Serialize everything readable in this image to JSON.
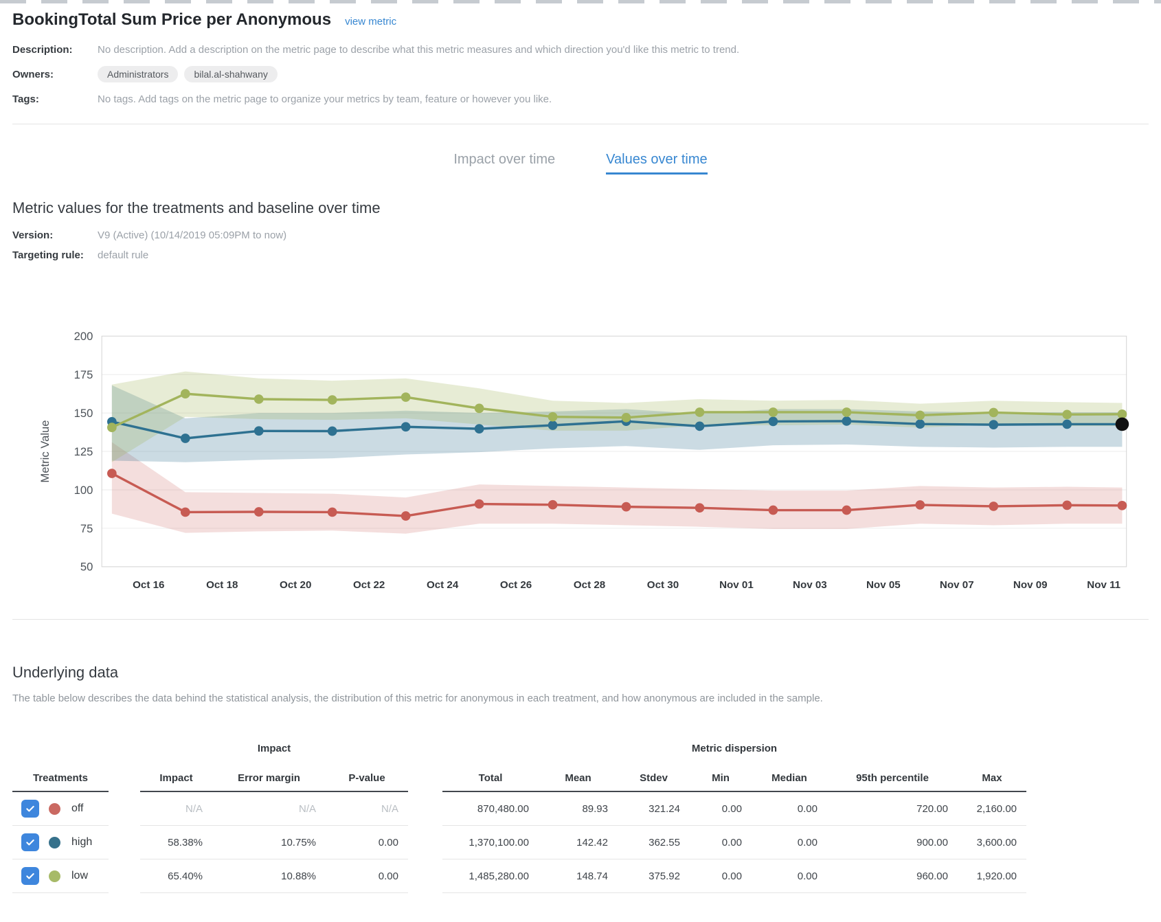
{
  "header": {
    "title": "BookingTotal Sum Price per Anonymous",
    "view_metric_label": "view metric",
    "description_label": "Description:",
    "description_text": "No description. Add a description on the metric page to describe what this metric measures and which direction you'd like this metric to trend.",
    "owners_label": "Owners:",
    "owners": [
      "Administrators",
      "bilal.al-shahwany"
    ],
    "tags_label": "Tags:",
    "tags_text": "No tags. Add tags on the metric page to organize your metrics by team, feature or however you like."
  },
  "tabs": [
    {
      "label": "Impact over time",
      "active": false
    },
    {
      "label": "Values over time",
      "active": true
    }
  ],
  "values_section": {
    "heading": "Metric values for the treatments and baseline over time",
    "version_label": "Version:",
    "version_value": "V9 (Active) (10/14/2019 05:09PM to now)",
    "targeting_label": "Targeting rule:",
    "targeting_value": "default rule"
  },
  "chart_data": {
    "type": "line",
    "title": "",
    "ylabel": "Metric Value",
    "ylim": [
      50,
      200
    ],
    "yticks": [
      50,
      75,
      100,
      125,
      150,
      175,
      200
    ],
    "x_unit": "days",
    "x": [
      0,
      2,
      4,
      6,
      8,
      10,
      12,
      14,
      16,
      18,
      20,
      22,
      24,
      26,
      27.5
    ],
    "xticks": {
      "days": [
        1,
        3,
        5,
        7,
        9,
        11,
        13,
        15,
        17,
        19,
        21,
        23,
        25,
        27
      ],
      "labels": [
        "Oct 16",
        "Oct 18",
        "Oct 20",
        "Oct 22",
        "Oct 24",
        "Oct 26",
        "Oct 28",
        "Oct 30",
        "Nov 01",
        "Nov 03",
        "Nov 05",
        "Nov 07",
        "Nov 09",
        "Nov 11"
      ]
    },
    "grid": true,
    "legend_position": "none",
    "series": [
      {
        "name": "off",
        "color": "#c75b53",
        "fill": "rgba(199,91,83,0.20)",
        "values": [
          110.7,
          85.5,
          85.7,
          85.5,
          83.0,
          90.8,
          90.3,
          89.0,
          88.3,
          86.8,
          86.8,
          90.2,
          89.3,
          90.0,
          89.8
        ],
        "upper": [
          131,
          98.5,
          98,
          97.5,
          95,
          103.5,
          102.5,
          101.5,
          100.5,
          99.5,
          99.5,
          102.5,
          101.5,
          102,
          101.5
        ],
        "lower": [
          84.5,
          72,
          73,
          73.5,
          71.5,
          78,
          78,
          77,
          76,
          74.5,
          74.5,
          78,
          77,
          78,
          78
        ]
      },
      {
        "name": "high",
        "color": "#2e7191",
        "fill": "rgba(46,113,145,0.25)",
        "values": [
          144.3,
          133.5,
          138.3,
          138.2,
          141.0,
          139.7,
          142.0,
          144.6,
          141.4,
          144.5,
          144.7,
          142.8,
          142.4,
          142.7,
          142.7
        ],
        "upper": [
          168,
          146.5,
          150,
          150,
          151.5,
          150,
          151,
          152.5,
          149.5,
          152.5,
          152.5,
          151,
          150.5,
          150.5,
          150.5
        ],
        "lower": [
          119,
          118,
          119.5,
          120.5,
          123,
          124.5,
          127,
          128.5,
          126,
          129,
          129.5,
          128,
          127.5,
          128,
          128
        ]
      },
      {
        "name": "low",
        "color": "#a2b45c",
        "fill": "rgba(162,180,92,0.26)",
        "values": [
          140.6,
          162.5,
          159.0,
          158.5,
          160.3,
          153.0,
          147.5,
          147.0,
          150.5,
          150.5,
          150.5,
          148.5,
          150.3,
          149.0,
          149.2
        ],
        "upper": [
          168.5,
          177,
          172.5,
          171,
          172.5,
          166,
          158,
          156.5,
          159,
          158,
          158.5,
          156,
          158,
          157,
          156.5
        ],
        "lower": [
          118,
          147.5,
          146,
          145.5,
          146.5,
          142.5,
          138.5,
          138.5,
          142,
          142,
          142.5,
          140.5,
          142.5,
          141.5,
          141.5
        ]
      }
    ],
    "last_marker": {
      "series": "high",
      "color": "#111111"
    }
  },
  "underlying": {
    "heading": "Underlying data",
    "description": "The table below describes the data behind the statistical analysis, the distribution of this metric for anonymous in each treatment, and how anonymous are included in the sample."
  },
  "table": {
    "treatments_label": "Treatments",
    "impact_group_label": "Impact",
    "dispersion_group_label": "Metric dispersion",
    "impact_columns": [
      "Impact",
      "Error margin",
      "P-value"
    ],
    "dispersion_columns": [
      "Total",
      "Mean",
      "Stdev",
      "Min",
      "Median",
      "95th percentile",
      "Max"
    ],
    "rows": [
      {
        "name": "off",
        "checked": true,
        "color": "#ca6962",
        "impact": "N/A",
        "error_margin": "N/A",
        "p_value": "N/A",
        "total": "870,480.00",
        "mean": "89.93",
        "stdev": "321.24",
        "min": "0.00",
        "median": "0.00",
        "p95": "720.00",
        "max": "2,160.00"
      },
      {
        "name": "high",
        "checked": true,
        "color": "#36718b",
        "impact": "58.38%",
        "error_margin": "10.75%",
        "p_value": "0.00",
        "total": "1,370,100.00",
        "mean": "142.42",
        "stdev": "362.55",
        "min": "0.00",
        "median": "0.00",
        "p95": "900.00",
        "max": "3,600.00"
      },
      {
        "name": "low",
        "checked": true,
        "color": "#a7ba68",
        "impact": "65.40%",
        "error_margin": "10.88%",
        "p_value": "0.00",
        "total": "1,485,280.00",
        "mean": "148.74",
        "stdev": "375.92",
        "min": "0.00",
        "median": "0.00",
        "p95": "960.00",
        "max": "1,920.00"
      }
    ]
  },
  "colors": {
    "accent_blue": "#3787d1",
    "checkbox_blue": "#3e86dd",
    "off_red": "#c75b53",
    "high_blue": "#2e7191",
    "low_green": "#a2b45c",
    "current_marker": "#111111"
  }
}
